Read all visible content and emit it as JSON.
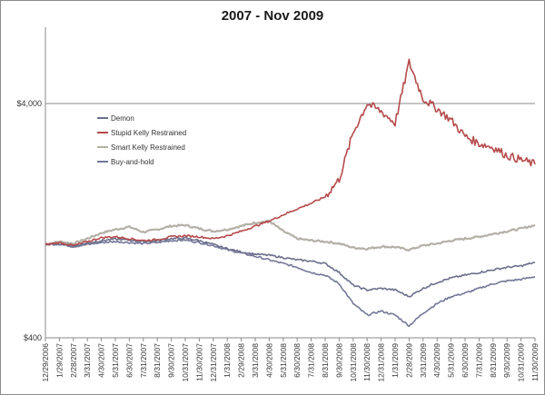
{
  "chart_data": {
    "type": "line",
    "title": "2007 - Nov 2009",
    "xlabel": "",
    "ylabel": "",
    "y_scale": "log",
    "ylim": [
      400,
      10000
    ],
    "yticks": [
      "$4,000",
      "$400"
    ],
    "grid": "horizontal at $4,000",
    "legend_position": "upper-left inside plot",
    "x_categories": [
      "12/29/2006",
      "1/29/2007",
      "2/28/2007",
      "3/31/2007",
      "4/30/2007",
      "5/31/2007",
      "6/30/2007",
      "7/31/2007",
      "8/31/2007",
      "9/30/2007",
      "10/31/2007",
      "11/30/2007",
      "12/31/2007",
      "1/31/2008",
      "2/29/2008",
      "3/31/2008",
      "4/30/2008",
      "5/31/2008",
      "6/30/2008",
      "7/31/2008",
      "8/31/2008",
      "9/30/2008",
      "10/31/2008",
      "11/30/2008",
      "12/31/2008",
      "1/31/2009",
      "2/28/2009",
      "3/31/2009",
      "4/30/2009",
      "5/31/2009",
      "6/30/2009",
      "7/31/2009",
      "8/31/2009",
      "9/30/2009",
      "10/31/2009",
      "11/30/2009"
    ],
    "series": [
      {
        "name": "Demon",
        "color": "#6b6f8c",
        "points": [
          [
            0,
            1000
          ],
          [
            1,
            1010
          ],
          [
            2,
            985
          ],
          [
            3,
            1015
          ],
          [
            4,
            1040
          ],
          [
            5,
            1055
          ],
          [
            6,
            1045
          ],
          [
            7,
            1030
          ],
          [
            8,
            1040
          ],
          [
            9,
            1060
          ],
          [
            10,
            1065
          ],
          [
            11,
            1040
          ],
          [
            12,
            1000
          ],
          [
            13,
            960
          ],
          [
            14,
            930
          ],
          [
            15,
            910
          ],
          [
            16,
            900
          ],
          [
            17,
            880
          ],
          [
            18,
            860
          ],
          [
            19,
            850
          ],
          [
            20,
            830
          ],
          [
            21,
            760
          ],
          [
            22,
            670
          ],
          [
            23,
            640
          ],
          [
            24,
            650
          ],
          [
            25,
            640
          ],
          [
            26,
            600
          ],
          [
            27,
            650
          ],
          [
            28,
            690
          ],
          [
            29,
            720
          ],
          [
            30,
            740
          ],
          [
            31,
            760
          ],
          [
            32,
            780
          ],
          [
            33,
            800
          ],
          [
            34,
            810
          ],
          [
            35,
            840
          ]
        ]
      },
      {
        "name": "Stupid Kelly Restrained",
        "color": "#b54a4a",
        "points": [
          [
            0,
            1000
          ],
          [
            1,
            1020
          ],
          [
            2,
            990
          ],
          [
            3,
            1030
          ],
          [
            4,
            1070
          ],
          [
            5,
            1080
          ],
          [
            6,
            1060
          ],
          [
            7,
            1040
          ],
          [
            8,
            1050
          ],
          [
            9,
            1080
          ],
          [
            10,
            1090
          ],
          [
            11,
            1080
          ],
          [
            12,
            1060
          ],
          [
            13,
            1090
          ],
          [
            14,
            1140
          ],
          [
            15,
            1200
          ],
          [
            16,
            1260
          ],
          [
            17,
            1340
          ],
          [
            18,
            1420
          ],
          [
            19,
            1500
          ],
          [
            20,
            1600
          ],
          [
            21,
            1900
          ],
          [
            22,
            3000
          ],
          [
            23,
            4000
          ],
          [
            24,
            3700
          ],
          [
            25,
            3300
          ],
          [
            26,
            6000
          ],
          [
            27,
            4200
          ],
          [
            28,
            3800
          ],
          [
            29,
            3400
          ],
          [
            30,
            2900
          ],
          [
            31,
            2700
          ],
          [
            32,
            2600
          ],
          [
            33,
            2400
          ],
          [
            34,
            2300
          ],
          [
            35,
            2200
          ]
        ]
      },
      {
        "name": "Smart Kelly Restrained",
        "color": "#b3b0a6",
        "points": [
          [
            0,
            1000
          ],
          [
            1,
            1030
          ],
          [
            2,
            1010
          ],
          [
            3,
            1060
          ],
          [
            4,
            1120
          ],
          [
            5,
            1160
          ],
          [
            6,
            1190
          ],
          [
            7,
            1130
          ],
          [
            8,
            1160
          ],
          [
            9,
            1200
          ],
          [
            10,
            1210
          ],
          [
            11,
            1170
          ],
          [
            12,
            1140
          ],
          [
            13,
            1160
          ],
          [
            14,
            1200
          ],
          [
            15,
            1240
          ],
          [
            16,
            1260
          ],
          [
            17,
            1140
          ],
          [
            18,
            1060
          ],
          [
            19,
            1040
          ],
          [
            20,
            1030
          ],
          [
            21,
            1010
          ],
          [
            22,
            970
          ],
          [
            23,
            960
          ],
          [
            24,
            980
          ],
          [
            25,
            975
          ],
          [
            26,
            950
          ],
          [
            27,
            990
          ],
          [
            28,
            1010
          ],
          [
            29,
            1040
          ],
          [
            30,
            1060
          ],
          [
            31,
            1080
          ],
          [
            32,
            1110
          ],
          [
            33,
            1140
          ],
          [
            34,
            1170
          ],
          [
            35,
            1210
          ]
        ]
      },
      {
        "name": "Buy-and-hold",
        "color": "#747898",
        "points": [
          [
            0,
            1000
          ],
          [
            1,
            1005
          ],
          [
            2,
            980
          ],
          [
            3,
            1000
          ],
          [
            4,
            1020
          ],
          [
            5,
            1030
          ],
          [
            6,
            1020
          ],
          [
            7,
            1010
          ],
          [
            8,
            1020
          ],
          [
            9,
            1040
          ],
          [
            10,
            1045
          ],
          [
            11,
            1020
          ],
          [
            12,
            990
          ],
          [
            13,
            950
          ],
          [
            14,
            920
          ],
          [
            15,
            890
          ],
          [
            16,
            860
          ],
          [
            17,
            830
          ],
          [
            18,
            800
          ],
          [
            19,
            760
          ],
          [
            20,
            740
          ],
          [
            21,
            680
          ],
          [
            22,
            560
          ],
          [
            23,
            500
          ],
          [
            24,
            520
          ],
          [
            25,
            500
          ],
          [
            26,
            450
          ],
          [
            27,
            510
          ],
          [
            28,
            560
          ],
          [
            29,
            600
          ],
          [
            30,
            620
          ],
          [
            31,
            650
          ],
          [
            32,
            680
          ],
          [
            33,
            700
          ],
          [
            34,
            710
          ],
          [
            35,
            730
          ]
        ]
      }
    ]
  }
}
